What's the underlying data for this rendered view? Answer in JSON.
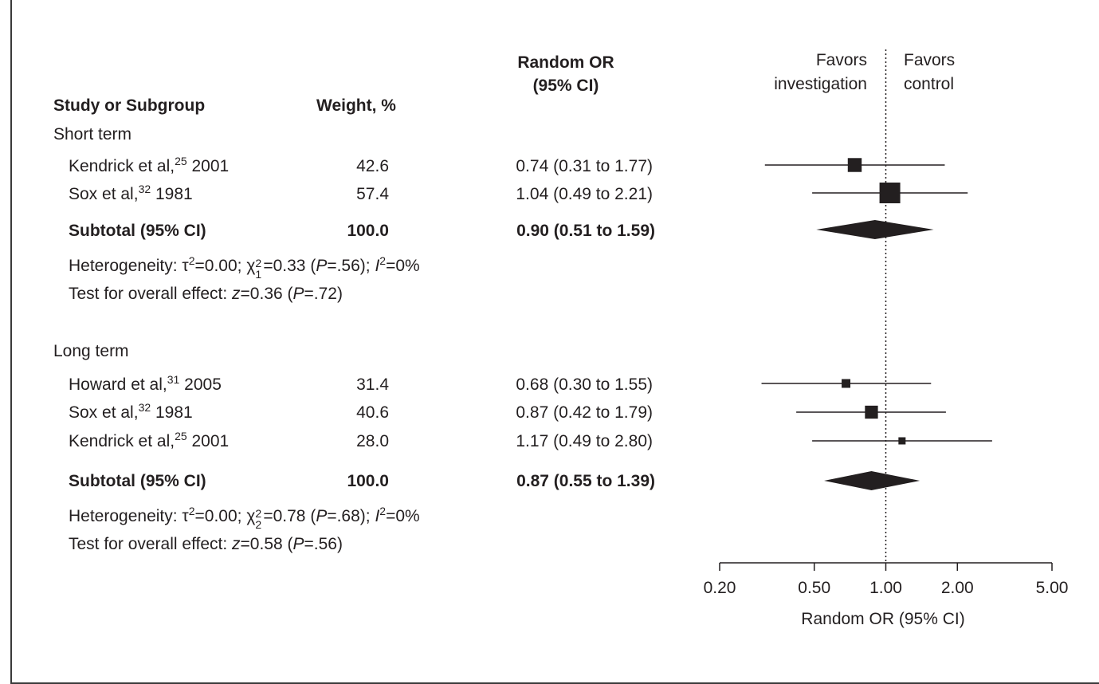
{
  "headers": {
    "study": "Study or Subgroup",
    "weight": "Weight, %",
    "or_line1": "Random OR",
    "or_line2": "(95% CI)",
    "favors_left_1": "Favors",
    "favors_left_2": "investigation",
    "favors_right_1": "Favors",
    "favors_right_2": "control"
  },
  "groups": [
    {
      "name": "Short term",
      "studies": [
        {
          "author": "Kendrick et al,",
          "ref": "25",
          "year": "2001",
          "weight": "42.6",
          "ci": "0.74 (0.31 to 1.77)"
        },
        {
          "author": "Sox et al,",
          "ref": "32",
          "year": "1981",
          "weight": "57.4",
          "ci": "1.04 (0.49 to 2.21)"
        }
      ],
      "subtotal": {
        "label": "Subtotal (95% CI)",
        "weight": "100.0",
        "ci": "0.90 (0.51 to 1.59)"
      },
      "het": {
        "prefix": "Heterogeneity: τ",
        "tau_val": "=0.00; χ",
        "df": "1",
        "chi_val": "=0.33 (",
        "p": "P",
        "p_val": "=.56); ",
        "i": "I",
        "i_val": "=0%"
      },
      "test": {
        "prefix": "Test for overall effect: ",
        "z": "z",
        "z_val": "=0.36 (",
        "p": "P",
        "p_val": "=.72)"
      }
    },
    {
      "name": "Long term",
      "studies": [
        {
          "author": "Howard et al,",
          "ref": "31",
          "year": "2005",
          "weight": "31.4",
          "ci": "0.68 (0.30 to 1.55)"
        },
        {
          "author": "Sox et al,",
          "ref": "32",
          "year": "1981",
          "weight": "40.6",
          "ci": "0.87 (0.42 to 1.79)"
        },
        {
          "author": "Kendrick et al,",
          "ref": "25",
          "year": "2001",
          "weight": "28.0",
          "ci": "1.17 (0.49 to 2.80)"
        }
      ],
      "subtotal": {
        "label": "Subtotal (95% CI)",
        "weight": "100.0",
        "ci": "0.87 (0.55 to 1.39)"
      },
      "het": {
        "prefix": "Heterogeneity: τ",
        "tau_val": "=0.00; χ",
        "df": "2",
        "chi_val": "=0.78 (",
        "p": "P",
        "p_val": "=.68); ",
        "i": "I",
        "i_val": "=0%"
      },
      "test": {
        "prefix": "Test for overall effect: ",
        "z": "z",
        "z_val": "=0.58 (",
        "p": "P",
        "p_val": "=.56)"
      }
    }
  ],
  "chart_data": {
    "type": "forest",
    "scale": "log",
    "xlim": [
      0.2,
      5.0
    ],
    "reference_line": 1.0,
    "xlabel": "Random OR (95% CI)",
    "ticks": [
      0.2,
      0.5,
      1.0,
      2.0,
      5.0
    ],
    "tick_labels": [
      "0.20",
      "0.50",
      "1.00",
      "2.00",
      "5.00"
    ],
    "rows": [
      {
        "group": "Short term",
        "study": "Kendrick et al, 2001",
        "or": 0.74,
        "lo": 0.31,
        "hi": 1.77,
        "weight": 42.6
      },
      {
        "group": "Short term",
        "study": "Sox et al, 1981",
        "or": 1.04,
        "lo": 0.49,
        "hi": 2.21,
        "weight": 57.4
      },
      {
        "group": "Short term",
        "study": "Subtotal (95% CI)",
        "or": 0.9,
        "lo": 0.51,
        "hi": 1.59,
        "weight": 100.0,
        "subtotal": true
      },
      {
        "group": "Long term",
        "study": "Howard et al, 2005",
        "or": 0.68,
        "lo": 0.3,
        "hi": 1.55,
        "weight": 31.4
      },
      {
        "group": "Long term",
        "study": "Sox et al, 1981",
        "or": 0.87,
        "lo": 0.42,
        "hi": 1.79,
        "weight": 40.6
      },
      {
        "group": "Long term",
        "study": "Kendrick et al, 2001",
        "or": 1.17,
        "lo": 0.49,
        "hi": 2.8,
        "weight": 28.0
      },
      {
        "group": "Long term",
        "study": "Subtotal (95% CI)",
        "or": 0.87,
        "lo": 0.55,
        "hi": 1.39,
        "weight": 100.0,
        "subtotal": true
      }
    ]
  },
  "colors": {
    "ink": "#231f20",
    "arrow_fill": "#2c6e71",
    "arrow_stroke": "#1d3e40",
    "frame": "#3a3a3a"
  }
}
